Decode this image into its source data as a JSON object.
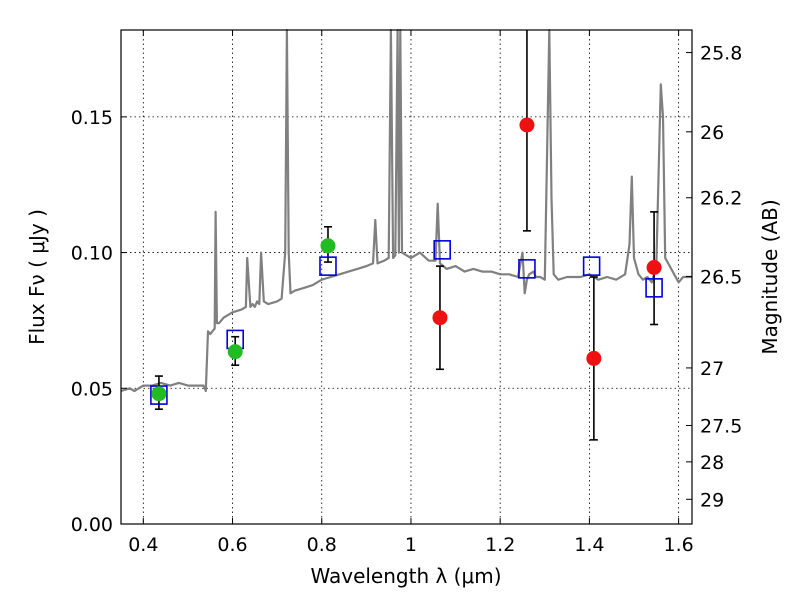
{
  "chart_data": {
    "type": "scatter",
    "xlabel": "Wavelength  λ (μm)",
    "ylabel": "Flux  Fν  ( μJy )",
    "y2label": "Magnitude (AB)",
    "xlim": [
      0.35,
      1.63
    ],
    "ylim": [
      0.0,
      0.182
    ],
    "grid": true,
    "x_ticks": [
      0.4,
      0.6,
      0.8,
      1.0,
      1.2,
      1.4,
      1.6
    ],
    "x_tick_labels": [
      "0.4",
      "0.6",
      "0.8",
      "1",
      "1.2",
      "1.4",
      "1.6"
    ],
    "y_ticks": [
      0.0,
      0.05,
      0.1,
      0.15
    ],
    "y_tick_labels": [
      "0.00",
      "0.05",
      "0.10",
      "0.15"
    ],
    "y2_ticks": [
      {
        "label": "25.8",
        "flux": 0.1737
      },
      {
        "label": "26",
        "flux": 0.1445
      },
      {
        "label": "26.2",
        "flux": 0.1202
      },
      {
        "label": "26.5",
        "flux": 0.0912
      },
      {
        "label": "27",
        "flux": 0.0575
      },
      {
        "label": "27.5",
        "flux": 0.0363
      },
      {
        "label": "28",
        "flux": 0.0229
      },
      {
        "label": "29",
        "flux": 0.0091
      }
    ],
    "series": [
      {
        "marker": "circle",
        "color": "#22bb22",
        "points": [
          {
            "x": 0.435,
            "y": 0.048,
            "yerr": [
              0.0423,
              0.0545
            ]
          },
          {
            "x": 0.606,
            "y": 0.0635,
            "yerr": [
              0.0585,
              0.069
            ]
          },
          {
            "x": 0.814,
            "y": 0.1025,
            "yerr": [
              0.0965,
              0.1095
            ]
          }
        ]
      },
      {
        "marker": "circle",
        "color": "#ee1111",
        "points": [
          {
            "x": 1.065,
            "y": 0.076,
            "yerr": [
              0.057,
              0.095
            ]
          },
          {
            "x": 1.26,
            "y": 0.147,
            "yerr": [
              0.108,
              0.185
            ]
          },
          {
            "x": 1.41,
            "y": 0.061,
            "yerr": [
              0.031,
              0.091
            ]
          },
          {
            "x": 1.545,
            "y": 0.0945,
            "yerr": [
              0.0735,
              0.115
            ]
          }
        ]
      },
      {
        "marker": "square",
        "color": "#0000dd",
        "points": [
          {
            "x": 0.435,
            "y": 0.0475
          },
          {
            "x": 0.606,
            "y": 0.068
          },
          {
            "x": 0.814,
            "y": 0.095
          },
          {
            "x": 1.07,
            "y": 0.101
          },
          {
            "x": 1.26,
            "y": 0.094
          },
          {
            "x": 1.405,
            "y": 0.095
          },
          {
            "x": 1.545,
            "y": 0.087
          }
        ]
      },
      {
        "marker": "line",
        "color": "#808080",
        "x": [
          0.35,
          0.37,
          0.38,
          0.4,
          0.42,
          0.44,
          0.46,
          0.48,
          0.5,
          0.52,
          0.535,
          0.54,
          0.545,
          0.55,
          0.56,
          0.562,
          0.565,
          0.57,
          0.58,
          0.6,
          0.62,
          0.63,
          0.633,
          0.64,
          0.645,
          0.65,
          0.655,
          0.66,
          0.664,
          0.67,
          0.68,
          0.7,
          0.71,
          0.718,
          0.722,
          0.726,
          0.73,
          0.74,
          0.76,
          0.78,
          0.8,
          0.82,
          0.84,
          0.86,
          0.88,
          0.9,
          0.915,
          0.92,
          0.925,
          0.94,
          0.95,
          0.955,
          0.96,
          0.965,
          0.97,
          0.973,
          0.976,
          0.98,
          0.99,
          1.0,
          1.02,
          1.04,
          1.055,
          1.06,
          1.065,
          1.08,
          1.1,
          1.12,
          1.14,
          1.16,
          1.18,
          1.2,
          1.22,
          1.24,
          1.25,
          1.255,
          1.26,
          1.265,
          1.275,
          1.28,
          1.29,
          1.3,
          1.305,
          1.31,
          1.315,
          1.32,
          1.33,
          1.35,
          1.38,
          1.4,
          1.42,
          1.44,
          1.46,
          1.48,
          1.49,
          1.495,
          1.5,
          1.51,
          1.52,
          1.53,
          1.54,
          1.55,
          1.56,
          1.565,
          1.57,
          1.58,
          1.59,
          1.6,
          1.61,
          1.62,
          1.63
        ],
        "y": [
          0.049,
          0.05,
          0.049,
          0.051,
          0.051,
          0.052,
          0.051,
          0.052,
          0.051,
          0.051,
          0.051,
          0.049,
          0.071,
          0.07,
          0.072,
          0.115,
          0.074,
          0.074,
          0.076,
          0.078,
          0.079,
          0.08,
          0.098,
          0.08,
          0.081,
          0.08,
          0.082,
          0.081,
          0.1,
          0.082,
          0.081,
          0.082,
          0.083,
          0.1,
          0.182,
          0.1,
          0.085,
          0.086,
          0.087,
          0.088,
          0.09,
          0.091,
          0.092,
          0.093,
          0.094,
          0.095,
          0.096,
          0.112,
          0.096,
          0.097,
          0.098,
          0.182,
          0.098,
          0.099,
          0.182,
          0.1,
          0.182,
          0.1,
          0.099,
          0.098,
          0.1,
          0.097,
          0.097,
          0.118,
          0.096,
          0.094,
          0.095,
          0.093,
          0.094,
          0.093,
          0.093,
          0.092,
          0.092,
          0.091,
          0.1,
          0.085,
          0.09,
          0.092,
          0.093,
          0.091,
          0.091,
          0.09,
          0.135,
          0.182,
          0.12,
          0.092,
          0.09,
          0.091,
          0.091,
          0.092,
          0.09,
          0.091,
          0.09,
          0.092,
          0.103,
          0.128,
          0.098,
          0.092,
          0.09,
          0.091,
          0.089,
          0.095,
          0.162,
          0.15,
          0.098,
          0.095,
          0.092,
          0.089,
          0.091,
          0.091,
          0.091
        ]
      }
    ]
  }
}
